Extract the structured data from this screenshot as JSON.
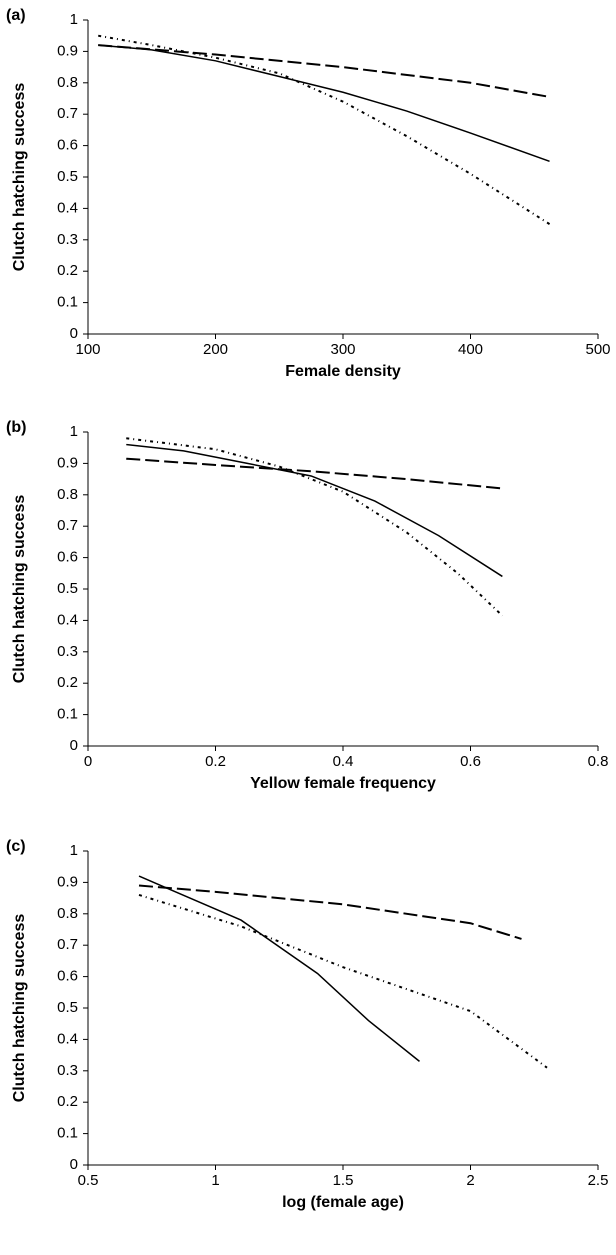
{
  "chart_data": [
    {
      "type": "line",
      "panel_label": "(a)",
      "xlabel": "Female density",
      "ylabel": "Clutch hatching success",
      "xlim": [
        100,
        500
      ],
      "ylim": [
        0,
        1
      ],
      "xticks": [
        100,
        200,
        300,
        400,
        500
      ],
      "yticks": [
        0,
        0.1,
        0.2,
        0.3,
        0.4,
        0.5,
        0.6,
        0.7,
        0.8,
        0.9,
        1
      ],
      "series": [
        {
          "color": "#000000",
          "dash": "solid",
          "x": [
            108,
            150,
            200,
            250,
            300,
            350,
            400,
            462
          ],
          "values": [
            0.92,
            0.905,
            0.87,
            0.82,
            0.77,
            0.71,
            0.64,
            0.55
          ]
        },
        {
          "color": "#000000",
          "dash": "dashed",
          "x": [
            108,
            200,
            300,
            400,
            462
          ],
          "values": [
            0.92,
            0.89,
            0.85,
            0.8,
            0.755
          ]
        },
        {
          "color": "#000000",
          "dash": "dotted",
          "x": [
            108,
            150,
            200,
            250,
            300,
            350,
            400,
            462
          ],
          "values": [
            0.95,
            0.92,
            0.88,
            0.83,
            0.74,
            0.63,
            0.51,
            0.35
          ]
        }
      ]
    },
    {
      "type": "line",
      "panel_label": "(b)",
      "xlabel": "Yellow female frequency",
      "ylabel": "Clutch hatching success",
      "xlim": [
        0,
        0.8
      ],
      "ylim": [
        0,
        1
      ],
      "xticks": [
        0,
        0.2,
        0.4,
        0.6,
        0.8
      ],
      "yticks": [
        0,
        0.1,
        0.2,
        0.3,
        0.4,
        0.5,
        0.6,
        0.7,
        0.8,
        0.9,
        1
      ],
      "series": [
        {
          "color": "#000000",
          "dash": "solid",
          "x": [
            0.06,
            0.15,
            0.25,
            0.35,
            0.45,
            0.55,
            0.65
          ],
          "values": [
            0.96,
            0.94,
            0.9,
            0.86,
            0.78,
            0.67,
            0.54
          ]
        },
        {
          "color": "#000000",
          "dash": "dashed",
          "x": [
            0.06,
            0.2,
            0.35,
            0.5,
            0.65
          ],
          "values": [
            0.915,
            0.895,
            0.875,
            0.85,
            0.82
          ]
        },
        {
          "color": "#000000",
          "dash": "dotted",
          "x": [
            0.06,
            0.2,
            0.3,
            0.4,
            0.5,
            0.58,
            0.65
          ],
          "values": [
            0.98,
            0.945,
            0.89,
            0.81,
            0.68,
            0.55,
            0.415
          ]
        }
      ]
    },
    {
      "type": "line",
      "panel_label": "(c)",
      "xlabel": "log (female age)",
      "ylabel": "Clutch hatching success",
      "xlim": [
        0.5,
        2.5
      ],
      "ylim": [
        0,
        1
      ],
      "xticks": [
        0.5,
        1,
        1.5,
        2,
        2.5
      ],
      "yticks": [
        0,
        0.1,
        0.2,
        0.3,
        0.4,
        0.5,
        0.6,
        0.7,
        0.8,
        0.9,
        1
      ],
      "series": [
        {
          "color": "#000000",
          "dash": "solid",
          "x": [
            0.7,
            1.1,
            1.4,
            1.6,
            1.8
          ],
          "values": [
            0.92,
            0.78,
            0.61,
            0.46,
            0.33
          ]
        },
        {
          "color": "#000000",
          "dash": "dashed",
          "x": [
            0.7,
            1.0,
            1.5,
            2.0,
            2.2
          ],
          "values": [
            0.89,
            0.87,
            0.83,
            0.77,
            0.72
          ]
        },
        {
          "color": "#000000",
          "dash": "dotted",
          "x": [
            0.7,
            1.1,
            1.5,
            2.0,
            2.3
          ],
          "values": [
            0.86,
            0.76,
            0.63,
            0.49,
            0.31
          ]
        }
      ]
    }
  ]
}
